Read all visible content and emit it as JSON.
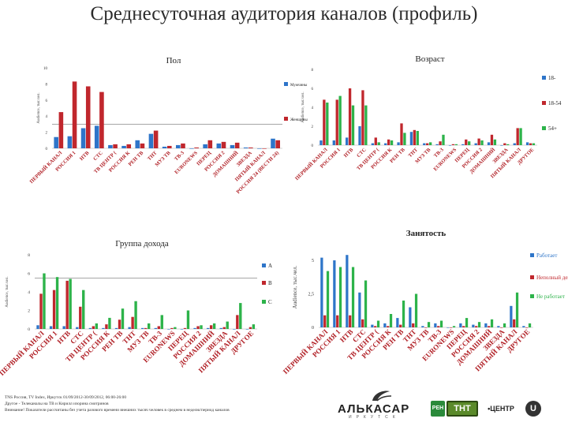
{
  "title": "Среднесуточная аудитория каналов (профиль)",
  "colors": {
    "blue": "#2e75c9",
    "red": "#c0272d",
    "green": "#2db34a",
    "ref": "#888888"
  },
  "chart_data": [
    {
      "id": "gender",
      "type": "bar",
      "title": "Пол",
      "ylabel": "Audience, тыс.чел.",
      "ylim": [
        0,
        10
      ],
      "yticks": [
        0,
        2,
        4,
        6,
        8,
        10
      ],
      "ytick_labels": [
        "0",
        "2",
        "4",
        "6",
        "8",
        "10"
      ],
      "reference_line": 3,
      "categories": [
        "ПЕРВЫЙ КАНАЛ",
        "РОССИЯ 1",
        "НТВ",
        "СТС",
        "ТВ ЦЕНТР (",
        "РОССИЯ К",
        "РЕН ТВ",
        "ТНТ",
        "МУЗ ТВ",
        "ТВ-3",
        "EURONEWS",
        "ПЕРЕЦ",
        "РОССИЯ 2",
        "ДОМАШНИЙ",
        "ЗВЕЗДА",
        "ПЯТЫЙ КАНАЛ",
        "РОССИЯ 24 (ВЕСТИ 24)"
      ],
      "series": [
        {
          "name": "Мужчины",
          "color_key": "blue",
          "values": [
            1.4,
            1.5,
            2.5,
            2.8,
            0.4,
            0.3,
            1.0,
            1.8,
            0.2,
            0.4,
            0.0,
            0.5,
            0.6,
            0.4,
            0.1,
            0.0,
            1.2
          ]
        },
        {
          "name": "Женщины",
          "color_key": "red",
          "values": [
            4.5,
            8.3,
            7.7,
            7.0,
            0.5,
            0.5,
            0.6,
            2.2,
            0.3,
            0.6,
            0.1,
            1.0,
            0.8,
            0.7,
            0.1,
            0.0,
            1.0
          ]
        }
      ]
    },
    {
      "id": "age",
      "type": "bar",
      "title": "Возраст",
      "ylabel": "Audience, тыс.чел.",
      "ylim": [
        0,
        8
      ],
      "yticks": [
        0,
        2,
        4,
        6,
        8
      ],
      "ytick_labels": [
        "0",
        "2",
        "4",
        "6",
        "8"
      ],
      "categories": [
        "ПЕРВЫЙ КАНАЛ",
        "РОССИЯ 1",
        "НТВ",
        "СТС",
        "ТВ ЦЕНТР (",
        "РОССИЯ К",
        "РЕН ТВ",
        "ТНТ",
        "МУЗ ТВ",
        "ТВ-3",
        "EURONEWS",
        "ПЕРЕЦ",
        "РОССИЯ 2",
        "ДОМАШНИЙ",
        "ЗВЕЗДА",
        "ПЯТЫЙ КАНАЛ",
        "ДРУГОЕ"
      ],
      "series": [
        {
          "name": "18-",
          "color_key": "blue",
          "values": [
            0.5,
            0.5,
            0.8,
            2.0,
            0.2,
            0.2,
            0.3,
            1.4,
            0.2,
            0.1,
            0.0,
            0.1,
            0.2,
            0.3,
            0.0,
            0.2,
            0.3
          ]
        },
        {
          "name": "18-54",
          "color_key": "red",
          "values": [
            4.8,
            4.8,
            6.0,
            5.8,
            0.8,
            0.6,
            2.3,
            1.6,
            0.2,
            0.4,
            0.1,
            0.6,
            0.7,
            1.1,
            0.2,
            1.8,
            0.2
          ]
        },
        {
          "name": "54+",
          "color_key": "green",
          "values": [
            4.5,
            5.2,
            4.2,
            4.2,
            0.3,
            0.5,
            1.3,
            1.5,
            0.3,
            1.1,
            0.1,
            0.4,
            0.5,
            0.6,
            0.1,
            1.8,
            0.2
          ]
        }
      ]
    },
    {
      "id": "income",
      "type": "bar",
      "title": "Группа дохода",
      "ylabel": "Audience, тыс.чел.",
      "ylim": [
        0,
        8
      ],
      "yticks": [
        0,
        2,
        4,
        6,
        8
      ],
      "ytick_labels": [
        "0",
        "2",
        "4",
        "6",
        "8"
      ],
      "reference_line": 5.5,
      "categories": [
        "ПЕРВЫЙ КАНАЛ",
        "РОССИЯ 1",
        "НТВ",
        "СТС",
        "ТВ ЦЕНТР (",
        "РОССИЯ К",
        "РЕН ТВ",
        "ТНТ",
        "МУЗ ТВ",
        "ТВ-3",
        "EURONEWS",
        "ПЕРЕЦ",
        "РОССИЯ 2",
        "ДОМАШНИЙ",
        "ЗВЕЗДА",
        "ПЯТЫЙ КАНАЛ",
        "ДРУГОЕ"
      ],
      "series": [
        {
          "name": "A",
          "color_key": "blue",
          "values": [
            0.4,
            0.3,
            0.3,
            0.2,
            0.1,
            0.1,
            0.1,
            0.2,
            0.1,
            0.1,
            0.0,
            0.0,
            0.1,
            0.1,
            0.1,
            0.0,
            0.0
          ]
        },
        {
          "name": "B",
          "color_key": "red",
          "values": [
            3.8,
            4.2,
            5.2,
            2.4,
            0.3,
            0.5,
            1.0,
            1.3,
            0.1,
            0.3,
            0.1,
            0.1,
            0.3,
            0.4,
            0.2,
            1.5,
            0.2
          ]
        },
        {
          "name": "C",
          "color_key": "green",
          "values": [
            6.0,
            5.6,
            5.4,
            4.2,
            0.6,
            1.2,
            2.2,
            3.0,
            0.6,
            1.5,
            0.2,
            2.0,
            0.4,
            0.6,
            0.8,
            2.8,
            0.5
          ]
        }
      ]
    },
    {
      "id": "employment",
      "type": "bar",
      "title": "Занятость",
      "ylabel": "Audience, тыс.чел.",
      "ylim": [
        0,
        6
      ],
      "yticks": [
        0,
        2.5,
        5
      ],
      "ytick_labels": [
        "0",
        "2,5",
        "5"
      ],
      "categories": [
        "ПЕРВЫЙ КАНАЛ",
        "РОССИЯ 1",
        "НТВ",
        "СТС",
        "ТВ ЦЕНТР (",
        "РОССИЯ К",
        "РЕН ТВ",
        "ТНТ",
        "МУЗ ТВ",
        "ТВ-3",
        "EURONEWS",
        "ПЕРЕЦ",
        "РОССИЯ 2",
        "ДОМАШНИЙ",
        "ЗВЕЗДА",
        "ПЯТЫЙ КАНАЛ",
        "ДРУГОЕ"
      ],
      "series": [
        {
          "name": "Работает",
          "color_key": "blue",
          "values": [
            5.2,
            5.0,
            5.4,
            2.6,
            0.2,
            0.3,
            0.7,
            1.5,
            0.1,
            0.3,
            0.0,
            0.3,
            0.2,
            0.3,
            0.1,
            1.6,
            0.1
          ]
        },
        {
          "name": "Неполный день",
          "color_key": "red",
          "values": [
            0.9,
            0.9,
            0.9,
            0.6,
            0.1,
            0.1,
            0.2,
            0.3,
            0.0,
            0.1,
            0.0,
            0.1,
            0.1,
            0.1,
            0.0,
            0.6,
            0.0
          ]
        },
        {
          "name": "Не работает",
          "color_key": "green",
          "values": [
            4.2,
            4.5,
            4.5,
            3.5,
            0.5,
            1.0,
            2.0,
            2.5,
            0.4,
            0.5,
            0.1,
            0.7,
            0.4,
            0.6,
            0.3,
            2.6,
            0.3
          ]
        }
      ]
    }
  ],
  "footer": [
    "TNS Россия, TV Index, Иркутск 01/09/2012-30/09/2012, 06:00-26:00",
    "Другое - Телеканалы на ТВ и Кирилл изорина смотринов",
    "Внимание! Показатели рассчитаны без учета разового времени внешних тысяч человек в среднем в неделю/период каналов"
  ],
  "logos": {
    "alkasar": "АЛЬКАСАР",
    "alkasar_sub": "ИРКУТСК",
    "ren": "РЕН",
    "tnt": "ТНТ",
    "center": "•ЦЕНТР",
    "u": "U"
  }
}
